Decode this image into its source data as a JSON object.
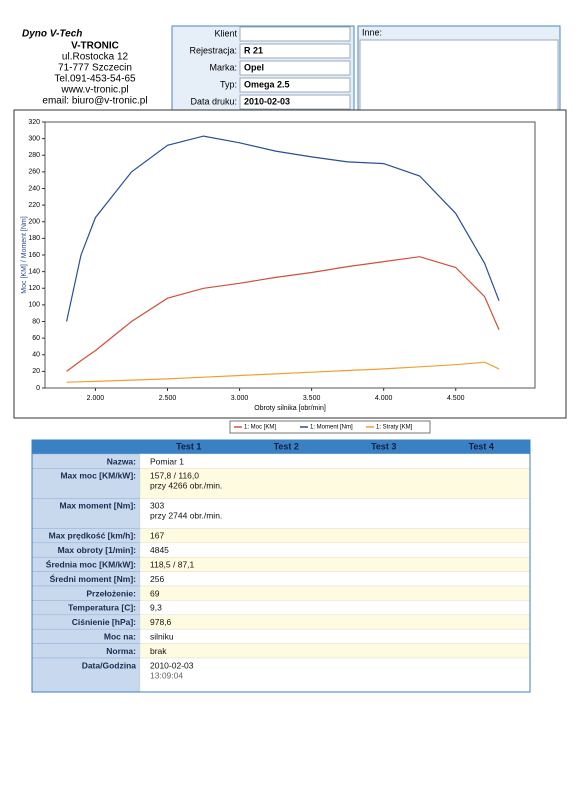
{
  "header": {
    "brand": "Dyno V-Tech",
    "lines": [
      "V-TRONIC",
      "ul.Rostocka 12",
      "71-777 Szczecin",
      "Tel.091-453-54-65",
      "www.v-tronic.pl",
      "email: biuro@v-tronic.pl"
    ]
  },
  "info": {
    "fields": [
      {
        "label": "Klient"
      },
      {
        "label": "Rejestracja:",
        "value": "R 21"
      },
      {
        "label": "Marka:",
        "value": "Opel"
      },
      {
        "label": "Typ:",
        "value": "Omega 2.5"
      },
      {
        "label": "Data druku:",
        "value": "2010-02-03"
      }
    ],
    "other_label": "Inne:"
  },
  "chart_data": {
    "type": "line",
    "x_label": "Obroty silnika [obr/min]",
    "y_label": "Moc [KM] / Moment [Nm]",
    "x": [
      1800,
      1900,
      2000,
      2250,
      2500,
      2750,
      3000,
      3250,
      3500,
      3750,
      4000,
      4250,
      4500,
      4700,
      4800
    ],
    "series": [
      {
        "name": "1: Moc [KM]",
        "color": "#d0503a",
        "values": [
          20,
          33,
          45,
          80,
          108,
          120,
          126,
          133,
          139,
          146,
          152,
          158,
          145,
          110,
          70
        ]
      },
      {
        "name": "1: Moment [Nm]",
        "color": "#2a4f93",
        "values": [
          80,
          160,
          205,
          260,
          292,
          303,
          295,
          285,
          278,
          272,
          270,
          255,
          210,
          150,
          105
        ]
      },
      {
        "name": "1: Straty [KM]",
        "color": "#f0a030",
        "values": [
          7,
          7.5,
          8,
          9.5,
          11,
          13,
          15,
          17,
          19,
          21,
          23,
          25.5,
          28,
          31,
          23
        ]
      }
    ],
    "xlim": [
      1650,
      5050
    ],
    "ylim": [
      0,
      320
    ],
    "xticks": [
      {
        "value": 2000,
        "label": "2.000"
      },
      {
        "value": 2500,
        "label": "2.500"
      },
      {
        "value": 3000,
        "label": "3.000"
      },
      {
        "value": 3500,
        "label": "3.500"
      },
      {
        "value": 4000,
        "label": "4.000"
      },
      {
        "value": 4500,
        "label": "4.500"
      }
    ],
    "yticks": [
      0,
      20,
      40,
      60,
      80,
      100,
      120,
      140,
      160,
      180,
      200,
      220,
      240,
      260,
      280,
      300,
      320
    ],
    "grid": false
  },
  "table": {
    "columns": [
      "Test 1",
      "Test 2",
      "Test 3",
      "Test 4"
    ],
    "rows": [
      {
        "label": "Nazwa:",
        "value": [
          "Pomiar 1"
        ]
      },
      {
        "label": "Max moc [KM/kW]:",
        "value": [
          "157,8 / 116,0",
          "przy 4266 obr./min."
        ]
      },
      {
        "label": "Max moment [Nm]:",
        "value": [
          "303",
          "przy 2744 obr./min."
        ]
      },
      {
        "label": "Max prędkość [km/h]:",
        "value": [
          "167"
        ]
      },
      {
        "label": "Max obroty [1/min]:",
        "value": [
          "4845"
        ]
      },
      {
        "label": "Średnia moc [KM/kW]:",
        "value": [
          "118,5 / 87,1"
        ]
      },
      {
        "label": "Średni moment [Nm]:",
        "value": [
          "256"
        ]
      },
      {
        "label": "Przełożenie:",
        "value": [
          "69"
        ]
      },
      {
        "label": "Temperatura [C]:",
        "value": [
          "9,3"
        ]
      },
      {
        "label": "Ciśnienie [hPa]:",
        "value": [
          "978,6"
        ]
      },
      {
        "label": "Moc na:",
        "value": [
          "silniku"
        ]
      },
      {
        "label": "Norma:",
        "value": [
          "brak"
        ]
      },
      {
        "label": "Data/Godzina",
        "value": [
          "2010-02-03",
          "13:09:04"
        ]
      }
    ]
  }
}
